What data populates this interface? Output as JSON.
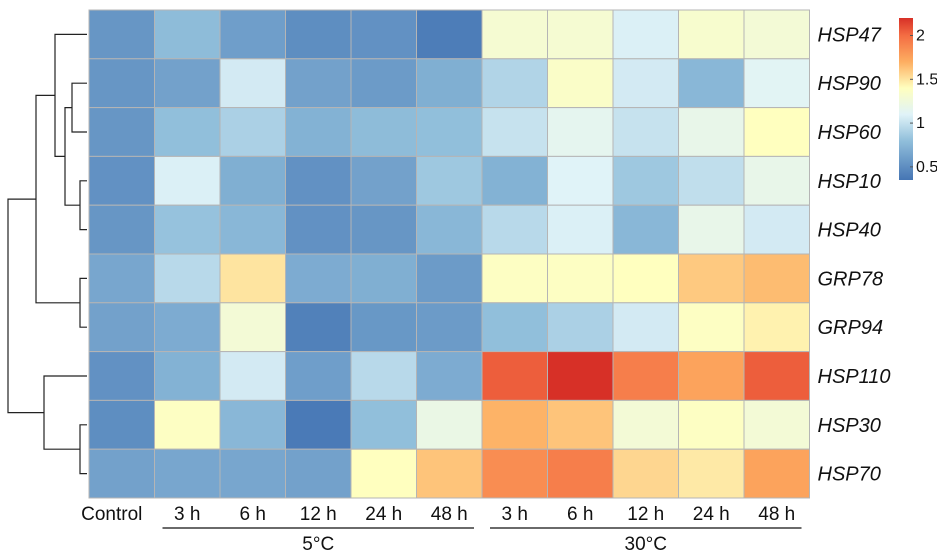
{
  "chart_data": {
    "type": "heatmap",
    "x_labels": [
      "Control",
      "3 h",
      "6 h",
      "12 h",
      "24 h",
      "48 h",
      "3 h",
      "6 h",
      "12 h",
      "24 h",
      "48 h"
    ],
    "groups": [
      {
        "label": "5°C",
        "columns": [
          1,
          2,
          3,
          4,
          5
        ]
      },
      {
        "label": "30°C",
        "columns": [
          6,
          7,
          8,
          9,
          10
        ]
      }
    ],
    "y_labels": [
      "HSP47",
      "HSP90",
      "HSP60",
      "HSP10",
      "HSP40",
      "GRP78",
      "GRP94",
      "HSP110",
      "HSP30",
      "HSP70"
    ],
    "values": [
      [
        0.55,
        0.78,
        0.6,
        0.5,
        0.52,
        0.4,
        1.3,
        1.3,
        1.08,
        1.32,
        1.28
      ],
      [
        0.55,
        0.62,
        1.05,
        0.62,
        0.58,
        0.7,
        0.92,
        1.35,
        1.05,
        0.75,
        1.12
      ],
      [
        0.55,
        0.8,
        0.9,
        0.72,
        0.78,
        0.8,
        1.0,
        1.15,
        1.0,
        1.18,
        1.4
      ],
      [
        0.52,
        1.08,
        0.7,
        0.52,
        0.62,
        0.85,
        0.72,
        1.1,
        0.85,
        0.98,
        1.18
      ],
      [
        0.55,
        0.82,
        0.75,
        0.52,
        0.55,
        0.75,
        0.95,
        1.08,
        0.75,
        1.18,
        1.05
      ],
      [
        0.65,
        0.95,
        1.5,
        0.68,
        0.7,
        0.58,
        1.38,
        1.38,
        1.4,
        1.6,
        1.65
      ],
      [
        0.62,
        0.68,
        1.28,
        0.42,
        0.56,
        0.58,
        0.8,
        0.9,
        1.05,
        1.38,
        1.45
      ],
      [
        0.52,
        0.72,
        1.05,
        0.6,
        0.95,
        0.68,
        2.05,
        2.2,
        1.92,
        1.75,
        2.05
      ],
      [
        0.5,
        1.38,
        0.75,
        0.38,
        0.8,
        1.2,
        1.68,
        1.62,
        1.28,
        1.38,
        1.28
      ],
      [
        0.62,
        0.65,
        0.65,
        0.62,
        1.4,
        1.62,
        1.85,
        1.92,
        1.55,
        1.48,
        1.75
      ]
    ],
    "color_scale": {
      "min": 0.35,
      "max": 2.2,
      "stops": [
        {
          "value": 0.35,
          "color": "#4575b4"
        },
        {
          "value": 0.8,
          "color": "#91bfdb"
        },
        {
          "value": 1.1,
          "color": "#e0f3f8"
        },
        {
          "value": 1.4,
          "color": "#ffffbf"
        },
        {
          "value": 1.7,
          "color": "#fdae61"
        },
        {
          "value": 2.0,
          "color": "#f46d43"
        },
        {
          "value": 2.2,
          "color": "#d73027"
        }
      ],
      "ticks": [
        {
          "value": 2,
          "label": "2"
        },
        {
          "value": 1.5,
          "label": "1.5"
        },
        {
          "value": 1,
          "label": "1"
        },
        {
          "value": 0.5,
          "label": "0.5"
        }
      ]
    },
    "row_dendrogram": true,
    "legend_position": "top-right"
  }
}
